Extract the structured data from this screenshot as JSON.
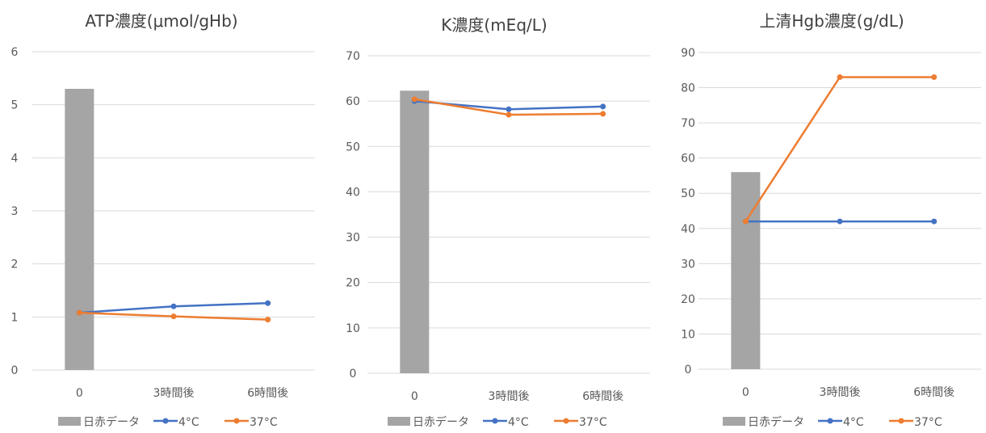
{
  "chart_data": [
    {
      "type": "bar+line",
      "title": "ATP濃度(μmol/gHb)",
      "categories": [
        "0",
        "3時間後",
        "6時間後"
      ],
      "ylim": [
        0,
        6
      ],
      "yticks": [
        0,
        1,
        2,
        3,
        4,
        5,
        6
      ],
      "grid": true,
      "legend_position": "bottom",
      "series": [
        {
          "name": "日赤データ",
          "kind": "bar",
          "color": "#a5a5a5",
          "values": [
            5.3,
            null,
            null
          ]
        },
        {
          "name": "4°C",
          "kind": "line",
          "color": "#4472c4",
          "values": [
            1.08,
            1.2,
            1.26
          ]
        },
        {
          "name": "37°C",
          "kind": "line",
          "color": "#ed7d31",
          "values": [
            1.08,
            1.01,
            0.95
          ]
        }
      ]
    },
    {
      "type": "bar+line",
      "title": "K濃度(mEq/L)",
      "categories": [
        "0",
        "3時間後",
        "6時間後"
      ],
      "ylim": [
        0,
        70
      ],
      "yticks": [
        0,
        10,
        20,
        30,
        40,
        50,
        60,
        70
      ],
      "grid": true,
      "legend_position": "bottom",
      "series": [
        {
          "name": "日赤データ",
          "kind": "bar",
          "color": "#a5a5a5",
          "values": [
            62.3,
            null,
            null
          ]
        },
        {
          "name": "4°C",
          "kind": "line",
          "color": "#4472c4",
          "values": [
            60.0,
            58.2,
            58.8
          ]
        },
        {
          "name": "37°C",
          "kind": "line",
          "color": "#ed7d31",
          "values": [
            60.4,
            57.0,
            57.2
          ]
        }
      ]
    },
    {
      "type": "bar+line",
      "title": "上清Hgb濃度(g/dL)",
      "categories": [
        "0",
        "3時間後",
        "6時間後"
      ],
      "ylim": [
        0,
        90
      ],
      "yticks": [
        0,
        10,
        20,
        30,
        40,
        50,
        60,
        70,
        80,
        90
      ],
      "grid": true,
      "legend_position": "bottom",
      "series": [
        {
          "name": "日赤データ",
          "kind": "bar",
          "color": "#a5a5a5",
          "values": [
            56,
            null,
            null
          ]
        },
        {
          "name": "4°C",
          "kind": "line",
          "color": "#4472c4",
          "values": [
            42,
            42,
            42
          ]
        },
        {
          "name": "37°C",
          "kind": "line",
          "color": "#ed7d31",
          "values": [
            42,
            83,
            83
          ]
        }
      ]
    }
  ]
}
